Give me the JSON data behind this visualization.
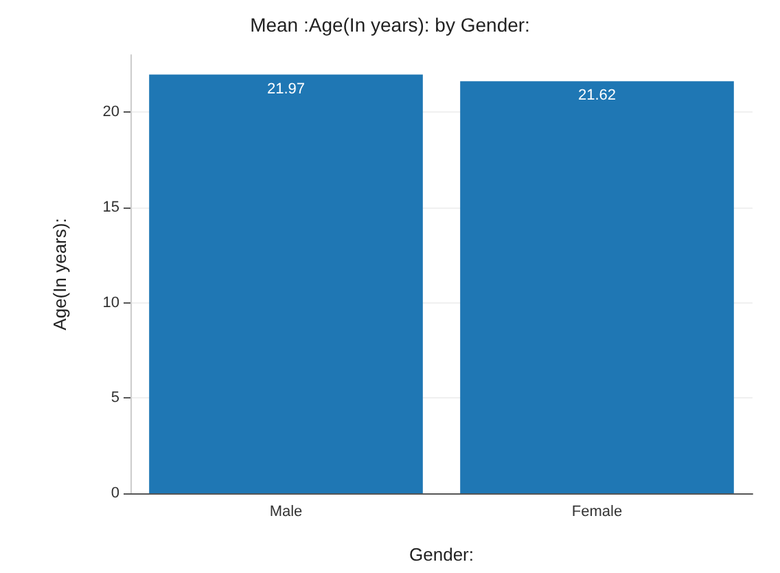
{
  "chart_data": {
    "type": "bar",
    "title": "Mean :Age(In years): by Gender:",
    "xlabel": "Gender:",
    "ylabel": "Age(In years):",
    "categories": [
      "Male",
      "Female"
    ],
    "values": [
      21.97,
      21.62
    ],
    "color": "#1f77b4",
    "ylim": [
      0,
      23
    ],
    "yticks": [
      0,
      5,
      10,
      15,
      20
    ],
    "grid": "y",
    "data_labels": true
  }
}
